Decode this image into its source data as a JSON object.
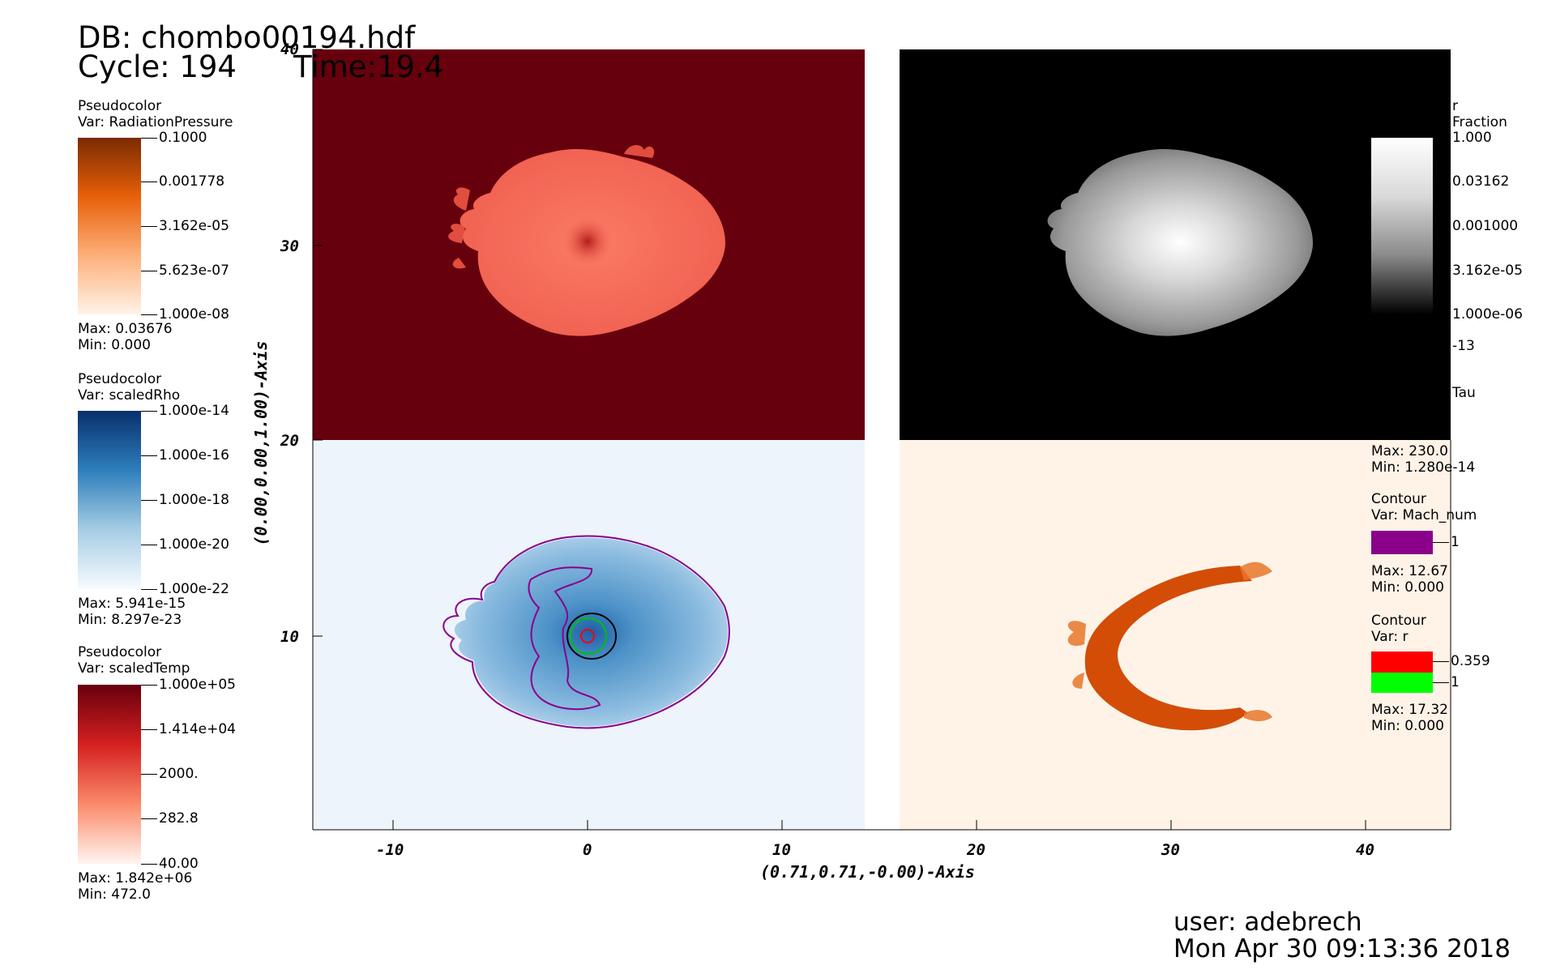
{
  "header": {
    "db": "DB: chombo00194.hdf",
    "cycle": "Cycle: 194",
    "time": "Time:19.4"
  },
  "legends": [
    {
      "plot": "Pseudocolor",
      "var": "Var: RadiationPressure",
      "ticks": [
        "0.1000",
        "0.001778",
        "3.162e-05",
        "5.623e-07",
        "1.000e-08"
      ],
      "max": "Max:  0.03676",
      "min": "Min:  0.000",
      "colors": [
        "#7a2a00",
        "#e8600a",
        "#fdb07a",
        "#fff3e8"
      ]
    },
    {
      "plot": "Pseudocolor",
      "var": "Var: scaledRho",
      "ticks": [
        "1.000e-14",
        "1.000e-16",
        "1.000e-18",
        "1.000e-20",
        "1.000e-22"
      ],
      "max": "Max:  5.941e-15",
      "min": "Min:  8.297e-23",
      "colors": [
        "#08306b",
        "#2e7ebc",
        "#a6cde4",
        "#f7fbff"
      ]
    },
    {
      "plot": "Pseudocolor",
      "var": "Var: scaledTemp",
      "ticks": [
        "1.000e+05",
        "1.414e+04",
        "2000.",
        "282.8",
        "40.00"
      ],
      "max": "Max:  1.842e+06",
      "min": "Min:  472.0",
      "colors": [
        "#67000d",
        "#d42020",
        "#fb8a6a",
        "#fff5f0"
      ]
    }
  ],
  "right_legend": {
    "partial_var": "r",
    "partial_fraction": "Fraction",
    "gray_ticks": [
      "1.000",
      "0.03162",
      "0.001000",
      "3.162e-05",
      "1.000e-06"
    ],
    "extra_tick": "-13",
    "tau": "Tau",
    "max": "Max:  230.0",
    "min": "Min:  1.280e-14",
    "contour1": {
      "plot": "Contour",
      "var": "Var: Mach_num",
      "level": "1",
      "max": "Max:  12.67",
      "min": "Min:  0.000",
      "color": "#8b008b"
    },
    "contour2": {
      "plot": "Contour",
      "var": "Var: r",
      "level1": "0.359",
      "level2": "1",
      "max": "Max:  17.32",
      "min": "Min:  0.000",
      "color1": "#ff0000",
      "color2": "#00ff00"
    }
  },
  "axes": {
    "x_title": "(0.71,0.71,-0.00)-Axis",
    "y_title": "(0.00,0.00,1.00)-Axis",
    "x_ticks": [
      "-10",
      "0",
      "10",
      "20",
      "30",
      "40"
    ],
    "y_ticks": [
      "40",
      "30",
      "20",
      "10"
    ]
  },
  "footer": {
    "user": "user: adebrech",
    "date": "Mon Apr 30 09:13:36 2018"
  }
}
